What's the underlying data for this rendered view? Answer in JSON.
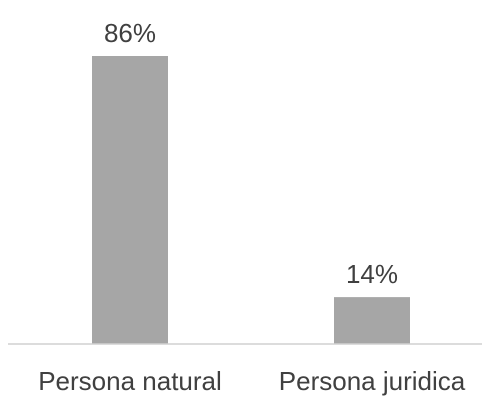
{
  "chart_data": {
    "type": "bar",
    "categories": [
      "Persona natural",
      "Persona juridica"
    ],
    "values": [
      86,
      14
    ],
    "value_labels": [
      "86%",
      "14%"
    ],
    "ylim": [
      0,
      100
    ],
    "grid": false,
    "bar_color": "#a6a6a6",
    "text_color": "#404040"
  }
}
